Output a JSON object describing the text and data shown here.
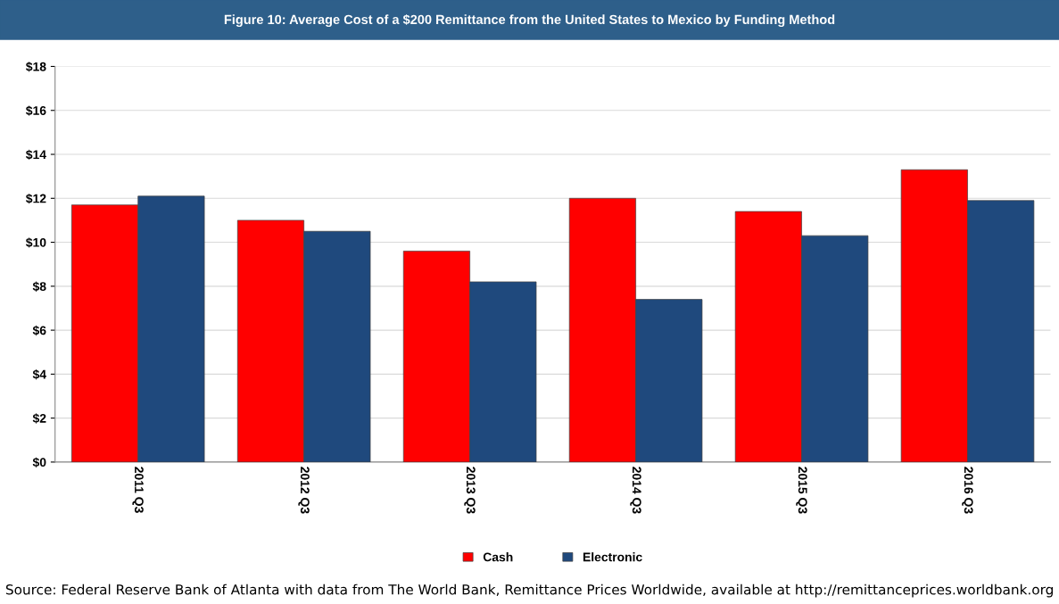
{
  "chart_data": {
    "type": "bar",
    "title": "Figure 10: Average Cost of a $200 Remittance from the United States to Mexico by Funding Method",
    "categories": [
      "2011 Q3",
      "2012 Q3",
      "2013 Q3",
      "2014 Q3",
      "2015 Q3",
      "2016 Q3"
    ],
    "series": [
      {
        "name": "Cash",
        "color": "#ff0000",
        "values": [
          11.7,
          11.0,
          9.6,
          12.0,
          11.4,
          13.3
        ]
      },
      {
        "name": "Electronic",
        "color": "#1f497d",
        "values": [
          12.1,
          10.5,
          8.2,
          7.4,
          10.3,
          11.9
        ]
      }
    ],
    "ylim": [
      0,
      18
    ],
    "yticks": [
      {
        "value": 0,
        "label": "$0"
      },
      {
        "value": 2,
        "label": "$2"
      },
      {
        "value": 4,
        "label": "$4"
      },
      {
        "value": 6,
        "label": "$6"
      },
      {
        "value": 8,
        "label": "$8"
      },
      {
        "value": 10,
        "label": "$10"
      },
      {
        "value": 12,
        "label": "$12"
      },
      {
        "value": 14,
        "label": "$14"
      },
      {
        "value": 16,
        "label": "$16"
      },
      {
        "value": 18,
        "label": "$18"
      }
    ],
    "grid": "y",
    "legend": "bottom",
    "annotations": [
      "Source: Federal Reserve Bank of Atlanta with data from The World Bank, Remittance Prices Worldwide, available at http://remittanceprices.worldbank.org"
    ]
  }
}
